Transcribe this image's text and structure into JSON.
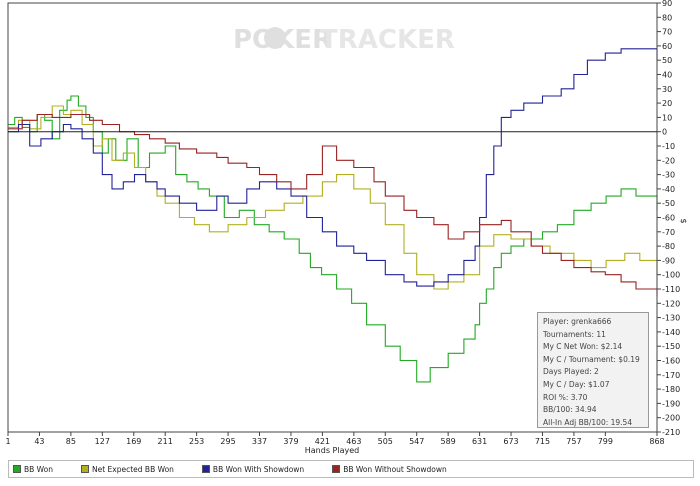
{
  "watermark": {
    "poker": "POKER",
    "tracker": "TRACKER"
  },
  "chart_data": {
    "type": "line",
    "xlabel": "Hands Played",
    "ylabel": "$",
    "xlim": [
      1,
      868
    ],
    "ylim": [
      -210,
      90
    ],
    "x_ticks": [
      1,
      43,
      85,
      127,
      169,
      211,
      253,
      295,
      337,
      379,
      421,
      463,
      505,
      547,
      589,
      631,
      673,
      715,
      757,
      799,
      868
    ],
    "y_ticks": [
      90,
      80,
      70,
      60,
      50,
      40,
      30,
      20,
      10,
      0,
      -10,
      -20,
      -30,
      -40,
      -50,
      -60,
      -70,
      -80,
      -90,
      -100,
      -110,
      -120,
      -130,
      -140,
      -150,
      -160,
      -170,
      -180,
      -190,
      -200,
      -210
    ],
    "grid": false,
    "legend_position": "bottom",
    "series": [
      {
        "name": "BB Won",
        "color": "#22aa22",
        "x": [
          1,
          10,
          20,
          30,
          40,
          50,
          60,
          70,
          80,
          85,
          95,
          105,
          115,
          127,
          135,
          145,
          160,
          175,
          190,
          211,
          225,
          240,
          255,
          270,
          290,
          310,
          330,
          350,
          370,
          390,
          405,
          420,
          440,
          460,
          480,
          505,
          525,
          547,
          565,
          589,
          610,
          625,
          631,
          640,
          650,
          660,
          673,
          690,
          715,
          735,
          757,
          780,
          800,
          820,
          840,
          868
        ],
        "y": [
          5,
          10,
          3,
          0,
          12,
          8,
          -5,
          15,
          22,
          25,
          18,
          10,
          0,
          -15,
          -5,
          -20,
          -5,
          -25,
          -15,
          -10,
          -30,
          -35,
          -40,
          -45,
          -60,
          -55,
          -65,
          -70,
          -75,
          -85,
          -95,
          -100,
          -110,
          -120,
          -135,
          -150,
          -160,
          -175,
          -165,
          -155,
          -145,
          -135,
          -120,
          -110,
          -95,
          -85,
          -80,
          -75,
          -70,
          -65,
          -55,
          -50,
          -45,
          -40,
          -45,
          -55
        ]
      },
      {
        "name": "Net Expected BB Won",
        "color": "#b0b022",
        "x": [
          1,
          15,
          30,
          45,
          60,
          75,
          85,
          100,
          115,
          127,
          140,
          155,
          170,
          185,
          200,
          211,
          230,
          250,
          270,
          295,
          320,
          345,
          370,
          395,
          421,
          440,
          463,
          485,
          505,
          530,
          547,
          570,
          589,
          610,
          631,
          650,
          673,
          700,
          725,
          757,
          780,
          800,
          825,
          845,
          868
        ],
        "y": [
          3,
          8,
          2,
          10,
          18,
          12,
          15,
          5,
          -10,
          -5,
          -20,
          -15,
          -25,
          -35,
          -45,
          -50,
          -60,
          -65,
          -70,
          -65,
          -60,
          -55,
          -50,
          -45,
          -35,
          -30,
          -40,
          -50,
          -65,
          -85,
          -100,
          -110,
          -105,
          -100,
          -80,
          -72,
          -75,
          -80,
          -85,
          -90,
          -95,
          -90,
          -85,
          -90,
          -100
        ]
      },
      {
        "name": "BB Won With Showdown",
        "color": "#222299",
        "x": [
          1,
          15,
          30,
          45,
          60,
          75,
          85,
          100,
          115,
          127,
          140,
          155,
          170,
          185,
          200,
          211,
          230,
          253,
          280,
          295,
          320,
          337,
          360,
          379,
          400,
          421,
          440,
          463,
          480,
          505,
          530,
          547,
          570,
          589,
          610,
          625,
          631,
          640,
          650,
          660,
          673,
          690,
          715,
          740,
          757,
          775,
          799,
          820,
          840,
          860,
          868
        ],
        "y": [
          0,
          5,
          -10,
          -5,
          0,
          5,
          2,
          -5,
          -15,
          -30,
          -40,
          -35,
          -30,
          -35,
          -40,
          -45,
          -50,
          -55,
          -45,
          -50,
          -40,
          -35,
          -40,
          -45,
          -60,
          -70,
          -80,
          -85,
          -90,
          -100,
          -105,
          -108,
          -105,
          -100,
          -90,
          -80,
          -60,
          -30,
          -10,
          10,
          15,
          20,
          25,
          30,
          40,
          50,
          55,
          58,
          58,
          58,
          50
        ]
      },
      {
        "name": "BB Won Without Showdown",
        "color": "#992222",
        "x": [
          1,
          20,
          40,
          60,
          85,
          110,
          127,
          150,
          170,
          190,
          211,
          230,
          253,
          280,
          295,
          320,
          337,
          360,
          379,
          400,
          421,
          440,
          463,
          490,
          505,
          530,
          547,
          570,
          589,
          610,
          631,
          660,
          673,
          700,
          715,
          740,
          757,
          780,
          799,
          820,
          840,
          868
        ],
        "y": [
          2,
          8,
          12,
          10,
          12,
          8,
          5,
          0,
          -2,
          -5,
          -8,
          -12,
          -15,
          -18,
          -22,
          -25,
          -30,
          -35,
          -40,
          -30,
          -10,
          -20,
          -25,
          -35,
          -45,
          -55,
          -60,
          -65,
          -75,
          -70,
          -65,
          -62,
          -70,
          -80,
          -85,
          -90,
          -95,
          -98,
          -100,
          -105,
          -110,
          -115
        ]
      }
    ]
  },
  "stats": [
    "Player: grenka666",
    "Tournaments: 11",
    "My C Net Won: $2.14",
    "My C / Tournament: $0.19",
    "Days Played: 2",
    "My C / Day: $1.07",
    "ROI %: 3.70",
    "BB/100: 34.94",
    "All-In Adj BB/100: 19.54"
  ]
}
